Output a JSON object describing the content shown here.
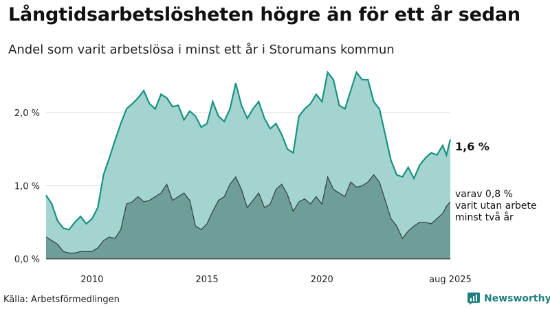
{
  "title": "Långtidsarbetslösheten högre än för ett år sedan",
  "subtitle": "Andel som varit arbetslösa i minst ett år i Storumans kommun",
  "source": "Källa: Arbetsförmedlingen",
  "brand": "Newsworthy",
  "colors": {
    "total_fill": "#a3d4cf",
    "total_line": "#17917f",
    "twoyear_fill": "#6f9e99",
    "twoyear_line": "#2f3e3c",
    "grid": "#dddddd",
    "brand": "#1f7f80"
  },
  "annotations": {
    "total_value": "1,6 %",
    "twoyear_line1": "varav 0,8 %",
    "twoyear_line2": "varit utan arbete",
    "twoyear_line3": "minst två år"
  },
  "chart_data": {
    "type": "area",
    "title": "Långtidsarbetslösheten högre än för ett år sedan",
    "subtitle": "Andel som varit arbetslösa i minst ett år i Storumans kommun",
    "xlabel": "",
    "ylabel": "",
    "x_range": [
      "2008-01",
      "2025-08"
    ],
    "ylim": [
      0,
      2.6
    ],
    "y_ticks": [
      0,
      1.0,
      2.0
    ],
    "y_tick_labels": [
      "0,0 %",
      "1,0 %",
      "2,0 %"
    ],
    "x_ticks": [
      "2010",
      "2015",
      "2020",
      "aug 2025"
    ],
    "grid": true,
    "legend": "none",
    "series": [
      {
        "key": "total",
        "points": [
          [
            "2008-01",
            0.87
          ],
          [
            "2008-04",
            0.75
          ],
          [
            "2008-07",
            0.52
          ],
          [
            "2008-10",
            0.42
          ],
          [
            "2009-01",
            0.4
          ],
          [
            "2009-04",
            0.5
          ],
          [
            "2009-07",
            0.58
          ],
          [
            "2009-10",
            0.48
          ],
          [
            "2010-01",
            0.55
          ],
          [
            "2010-04",
            0.7
          ],
          [
            "2010-07",
            1.15
          ],
          [
            "2010-10",
            1.38
          ],
          [
            "2011-01",
            1.62
          ],
          [
            "2011-04",
            1.85
          ],
          [
            "2011-07",
            2.05
          ],
          [
            "2011-10",
            2.12
          ],
          [
            "2012-01",
            2.2
          ],
          [
            "2012-04",
            2.3
          ],
          [
            "2012-07",
            2.12
          ],
          [
            "2012-10",
            2.05
          ],
          [
            "2013-01",
            2.25
          ],
          [
            "2013-04",
            2.2
          ],
          [
            "2013-07",
            2.08
          ],
          [
            "2013-10",
            2.1
          ],
          [
            "2014-01",
            1.9
          ],
          [
            "2014-04",
            2.02
          ],
          [
            "2014-07",
            1.95
          ],
          [
            "2014-10",
            1.8
          ],
          [
            "2015-01",
            1.85
          ],
          [
            "2015-04",
            2.15
          ],
          [
            "2015-07",
            1.95
          ],
          [
            "2015-10",
            1.88
          ],
          [
            "2016-01",
            2.05
          ],
          [
            "2016-04",
            2.4
          ],
          [
            "2016-07",
            2.1
          ],
          [
            "2016-10",
            1.92
          ],
          [
            "2017-01",
            2.05
          ],
          [
            "2017-04",
            2.15
          ],
          [
            "2017-07",
            1.92
          ],
          [
            "2017-10",
            1.78
          ],
          [
            "2018-01",
            1.85
          ],
          [
            "2018-04",
            1.7
          ],
          [
            "2018-07",
            1.5
          ],
          [
            "2018-10",
            1.45
          ],
          [
            "2019-01",
            1.95
          ],
          [
            "2019-04",
            2.05
          ],
          [
            "2019-07",
            2.12
          ],
          [
            "2019-10",
            2.25
          ],
          [
            "2020-01",
            2.15
          ],
          [
            "2020-04",
            2.55
          ],
          [
            "2020-07",
            2.45
          ],
          [
            "2020-10",
            2.1
          ],
          [
            "2021-01",
            2.05
          ],
          [
            "2021-04",
            2.3
          ],
          [
            "2021-07",
            2.55
          ],
          [
            "2021-10",
            2.45
          ],
          [
            "2022-01",
            2.45
          ],
          [
            "2022-04",
            2.15
          ],
          [
            "2022-07",
            2.05
          ],
          [
            "2022-10",
            1.7
          ],
          [
            "2023-01",
            1.35
          ],
          [
            "2023-04",
            1.15
          ],
          [
            "2023-07",
            1.12
          ],
          [
            "2023-10",
            1.25
          ],
          [
            "2024-01",
            1.1
          ],
          [
            "2024-04",
            1.28
          ],
          [
            "2024-07",
            1.38
          ],
          [
            "2024-10",
            1.45
          ],
          [
            "2025-01",
            1.42
          ],
          [
            "2025-04",
            1.55
          ],
          [
            "2025-06",
            1.42
          ],
          [
            "2025-08",
            1.63
          ]
        ]
      },
      {
        "key": "two_years",
        "points": [
          [
            "2008-01",
            0.3
          ],
          [
            "2008-04",
            0.25
          ],
          [
            "2008-07",
            0.2
          ],
          [
            "2008-10",
            0.1
          ],
          [
            "2009-01",
            0.08
          ],
          [
            "2009-04",
            0.08
          ],
          [
            "2009-07",
            0.1
          ],
          [
            "2009-10",
            0.1
          ],
          [
            "2010-01",
            0.1
          ],
          [
            "2010-04",
            0.15
          ],
          [
            "2010-07",
            0.25
          ],
          [
            "2010-10",
            0.3
          ],
          [
            "2011-01",
            0.28
          ],
          [
            "2011-04",
            0.4
          ],
          [
            "2011-07",
            0.75
          ],
          [
            "2011-10",
            0.78
          ],
          [
            "2012-01",
            0.85
          ],
          [
            "2012-04",
            0.78
          ],
          [
            "2012-07",
            0.8
          ],
          [
            "2012-10",
            0.85
          ],
          [
            "2013-01",
            0.9
          ],
          [
            "2013-04",
            1.02
          ],
          [
            "2013-07",
            0.8
          ],
          [
            "2013-10",
            0.85
          ],
          [
            "2014-01",
            0.9
          ],
          [
            "2014-04",
            0.8
          ],
          [
            "2014-07",
            0.45
          ],
          [
            "2014-10",
            0.4
          ],
          [
            "2015-01",
            0.48
          ],
          [
            "2015-04",
            0.65
          ],
          [
            "2015-07",
            0.8
          ],
          [
            "2015-10",
            0.85
          ],
          [
            "2016-01",
            1.02
          ],
          [
            "2016-04",
            1.12
          ],
          [
            "2016-07",
            0.95
          ],
          [
            "2016-10",
            0.7
          ],
          [
            "2017-01",
            0.8
          ],
          [
            "2017-04",
            0.9
          ],
          [
            "2017-07",
            0.7
          ],
          [
            "2017-10",
            0.75
          ],
          [
            "2018-01",
            0.95
          ],
          [
            "2018-04",
            1.02
          ],
          [
            "2018-07",
            0.88
          ],
          [
            "2018-10",
            0.65
          ],
          [
            "2019-01",
            0.78
          ],
          [
            "2019-04",
            0.82
          ],
          [
            "2019-07",
            0.75
          ],
          [
            "2019-10",
            0.85
          ],
          [
            "2020-01",
            0.75
          ],
          [
            "2020-04",
            1.12
          ],
          [
            "2020-07",
            0.95
          ],
          [
            "2020-10",
            0.9
          ],
          [
            "2021-01",
            0.85
          ],
          [
            "2021-04",
            1.05
          ],
          [
            "2021-07",
            0.98
          ],
          [
            "2021-10",
            1.0
          ],
          [
            "2022-01",
            1.05
          ],
          [
            "2022-04",
            1.15
          ],
          [
            "2022-07",
            1.05
          ],
          [
            "2022-10",
            0.8
          ],
          [
            "2023-01",
            0.55
          ],
          [
            "2023-04",
            0.45
          ],
          [
            "2023-07",
            0.28
          ],
          [
            "2023-10",
            0.38
          ],
          [
            "2024-01",
            0.45
          ],
          [
            "2024-04",
            0.5
          ],
          [
            "2024-07",
            0.5
          ],
          [
            "2024-10",
            0.48
          ],
          [
            "2025-01",
            0.55
          ],
          [
            "2025-04",
            0.62
          ],
          [
            "2025-06",
            0.72
          ],
          [
            "2025-08",
            0.78
          ]
        ]
      }
    ]
  }
}
